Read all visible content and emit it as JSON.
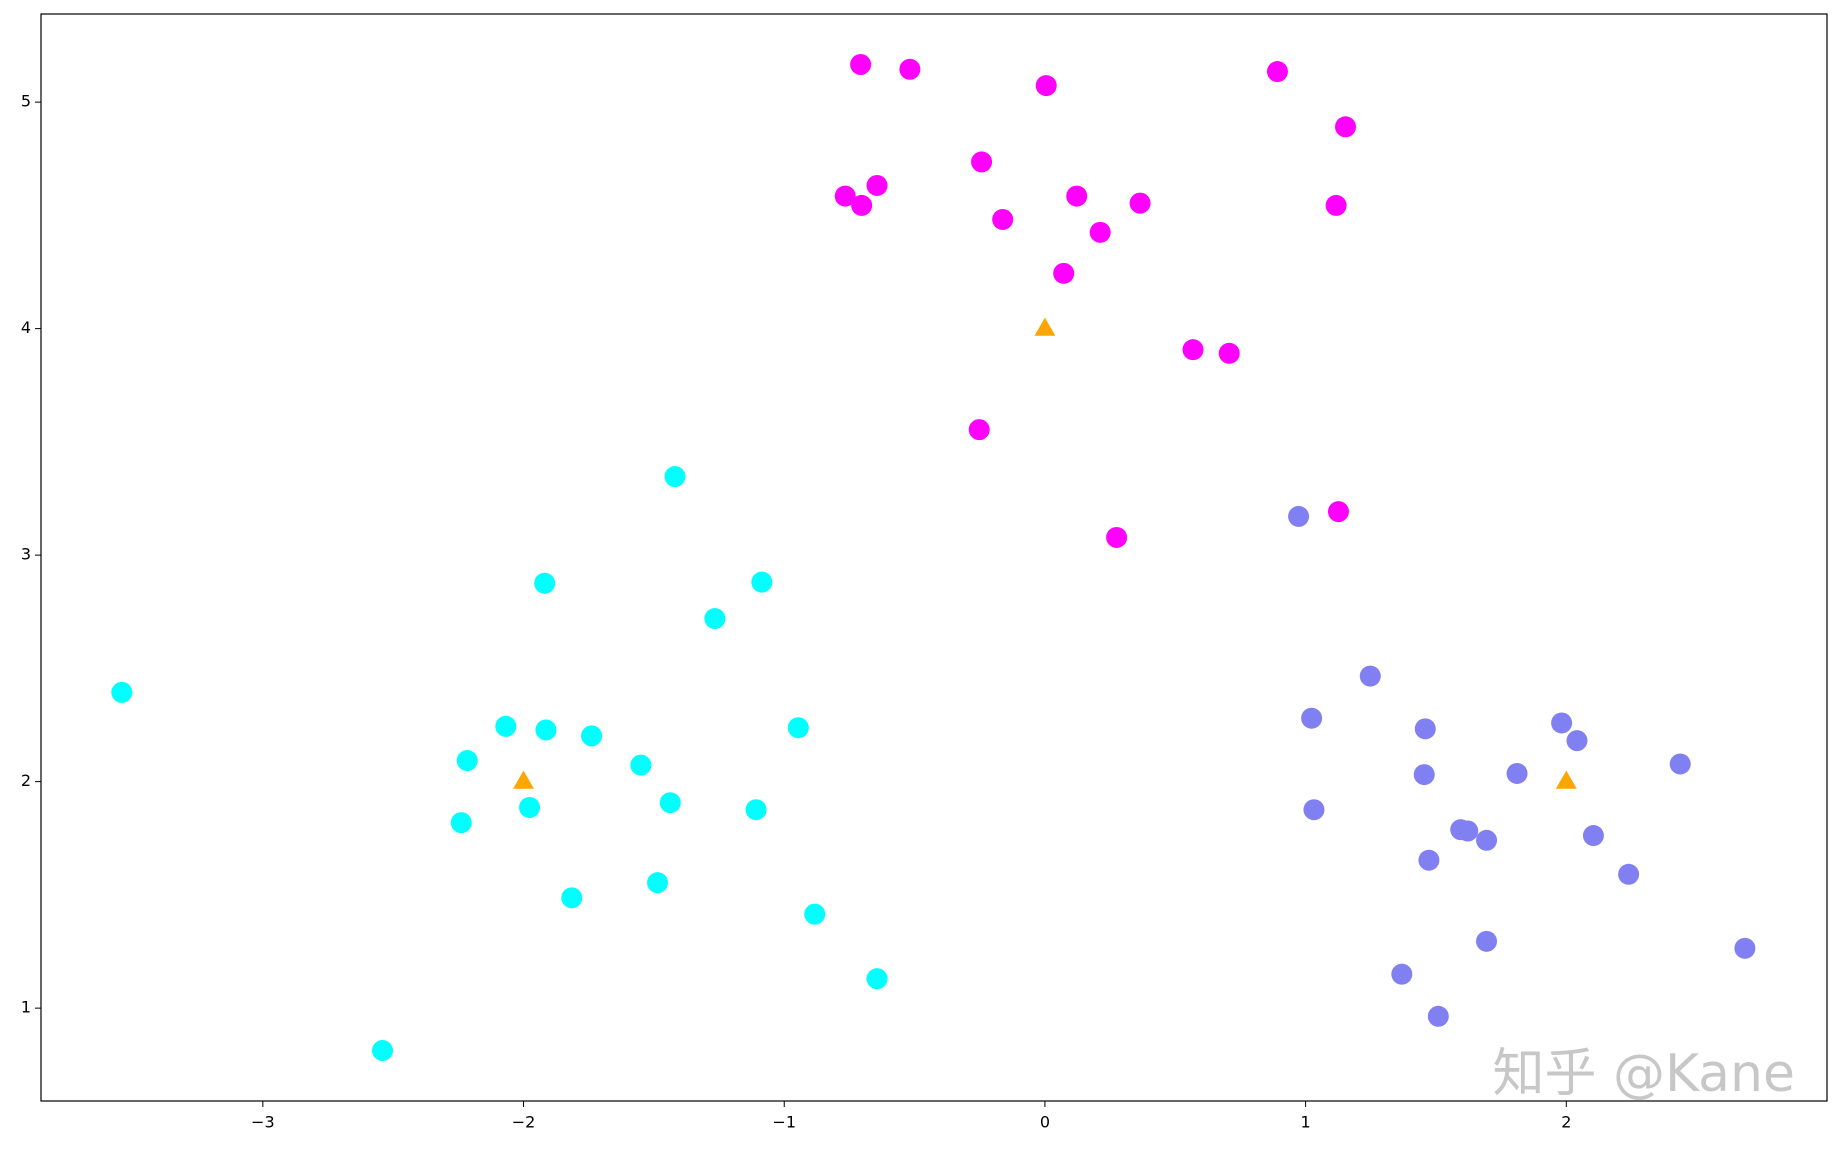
{
  "chart_data": {
    "type": "scatter",
    "xlim": [
      -3.851,
      3.0
    ],
    "ylim": [
      0.59,
      5.389
    ],
    "xticks": [
      {
        "value": -3,
        "label": "−3"
      },
      {
        "value": -2,
        "label": "−2"
      },
      {
        "value": -1,
        "label": "−1"
      },
      0,
      1,
      2
    ],
    "yticks": [
      1,
      2,
      3,
      4,
      5
    ],
    "watermark": "知乎 @Kane",
    "series": [
      {
        "color": "#ff00ff",
        "marker": "circle",
        "x": [
          -0.707,
          -0.518,
          0.005,
          0.892,
          1.153,
          -0.243,
          -0.644,
          -0.766,
          -0.703,
          0.122,
          -0.162,
          0.365,
          0.212,
          1.117,
          0.072,
          0.568,
          0.707,
          -0.252,
          1.126,
          0.275
        ],
        "y": [
          5.166,
          5.145,
          5.073,
          5.135,
          4.891,
          4.736,
          4.632,
          4.585,
          4.544,
          4.585,
          4.482,
          4.554,
          4.425,
          4.544,
          4.244,
          3.907,
          3.891,
          3.554,
          3.192,
          3.078
        ]
      },
      {
        "color": "#00ffff",
        "marker": "circle",
        "x": [
          -1.419,
          -1.919,
          -1.086,
          -1.266,
          -3.541,
          -2.068,
          -1.914,
          -1.739,
          -2.216,
          -0.946,
          -1.55,
          -1.977,
          -1.437,
          -1.108,
          -2.239,
          -1.486,
          -1.815,
          -0.883,
          -0.644,
          -2.541
        ],
        "y": [
          3.347,
          2.876,
          2.881,
          2.72,
          2.394,
          2.244,
          2.228,
          2.202,
          2.093,
          2.238,
          2.073,
          1.886,
          1.907,
          1.876,
          1.819,
          1.554,
          1.487,
          1.415,
          1.13,
          0.813
        ]
      },
      {
        "color": "#8080f2",
        "marker": "circle",
        "x": [
          0.973,
          1.248,
          1.023,
          1.459,
          1.982,
          2.041,
          1.455,
          1.811,
          2.437,
          1.032,
          1.595,
          1.622,
          1.694,
          2.104,
          1.473,
          2.239,
          1.694,
          2.685,
          1.369,
          1.509
        ],
        "y": [
          3.171,
          2.466,
          2.28,
          2.233,
          2.259,
          2.181,
          2.031,
          2.036,
          2.078,
          1.876,
          1.788,
          1.782,
          1.741,
          1.762,
          1.653,
          1.591,
          1.295,
          1.264,
          1.15,
          0.964
        ]
      },
      {
        "color": "#ffa500",
        "marker": "triangle",
        "x": [
          0,
          -2,
          2
        ],
        "y": [
          4,
          2,
          2
        ]
      }
    ]
  }
}
